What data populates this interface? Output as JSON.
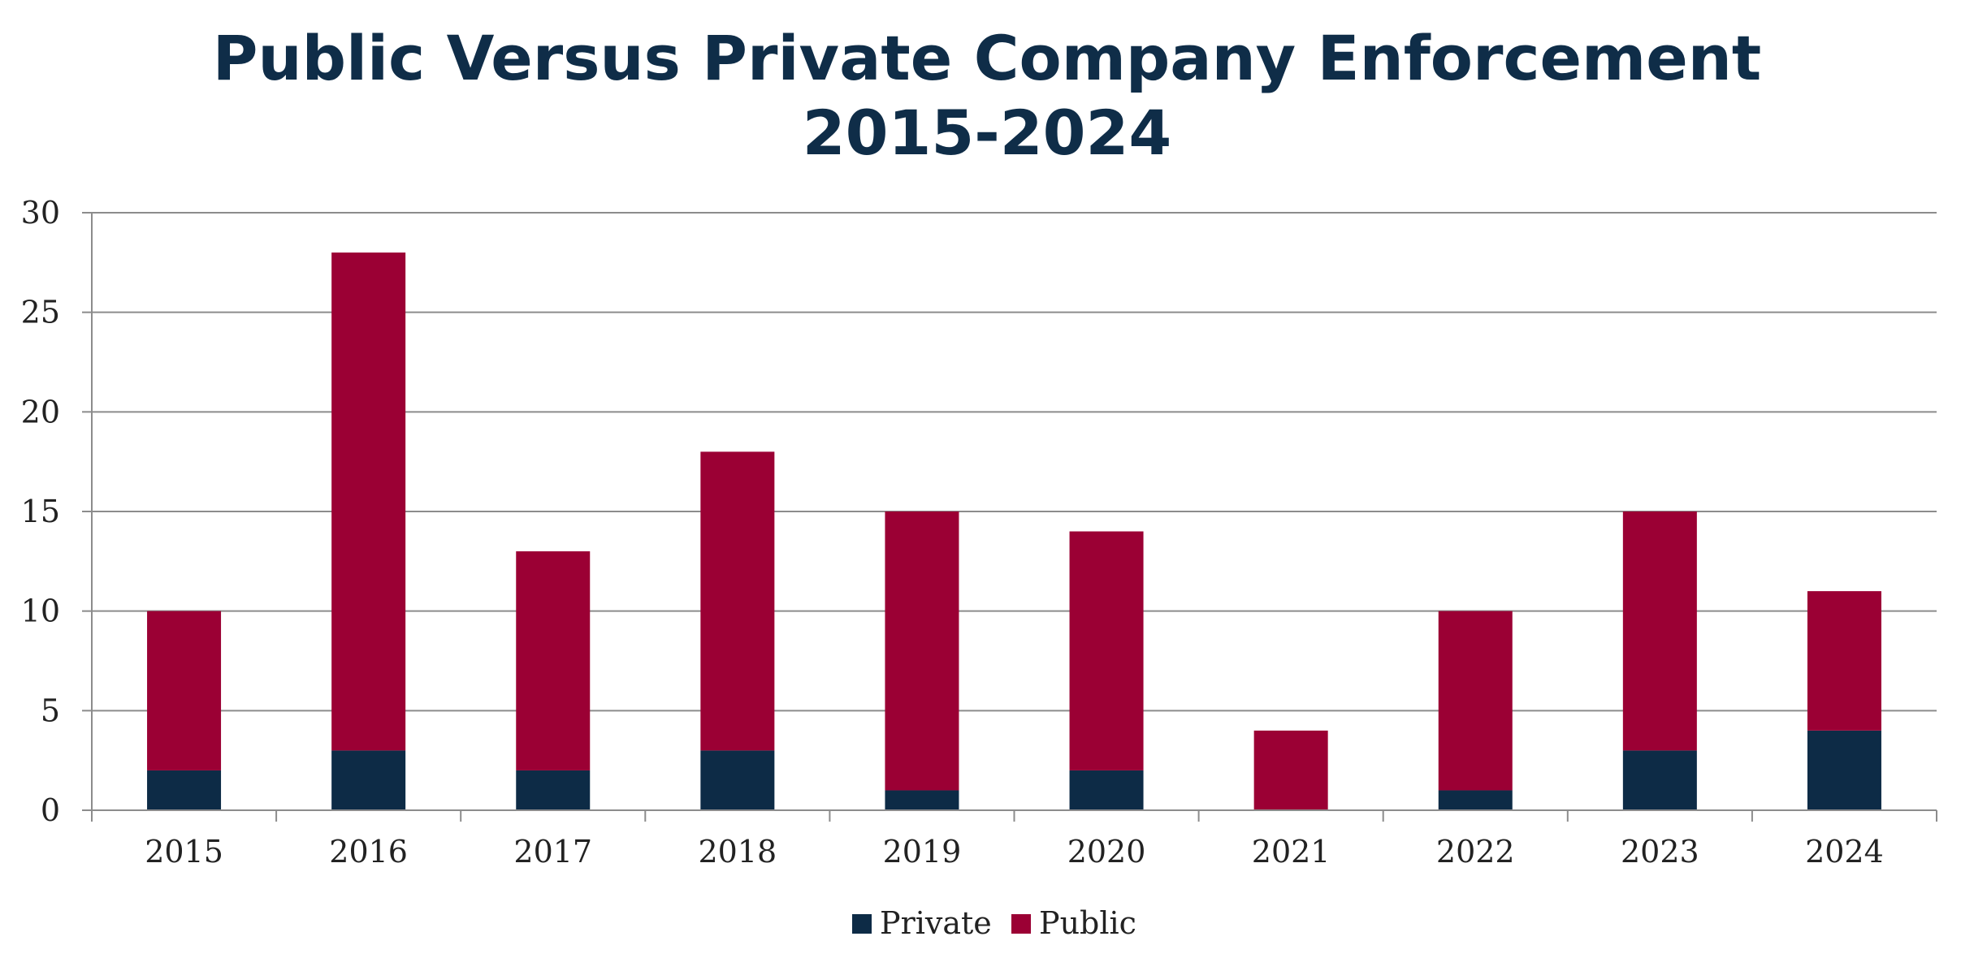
{
  "chart_data": {
    "type": "bar",
    "stacked": true,
    "title_lines": [
      "Public Versus Private Company Enforcement",
      "2015-2024"
    ],
    "categories": [
      "2015",
      "2016",
      "2017",
      "2018",
      "2019",
      "2020",
      "2021",
      "2022",
      "2023",
      "2024"
    ],
    "series": [
      {
        "name": "Private",
        "color": "#0d2b46",
        "values": [
          2,
          3,
          2,
          3,
          1,
          2,
          0,
          1,
          3,
          4
        ]
      },
      {
        "name": "Public",
        "color": "#9b0034",
        "values": [
          8,
          25,
          11,
          15,
          14,
          12,
          4,
          9,
          12,
          7
        ]
      }
    ],
    "ylim": [
      0,
      30
    ],
    "yticks": [
      0,
      5,
      10,
      15,
      20,
      25,
      30
    ],
    "grid": true,
    "legend_position": "bottom"
  }
}
